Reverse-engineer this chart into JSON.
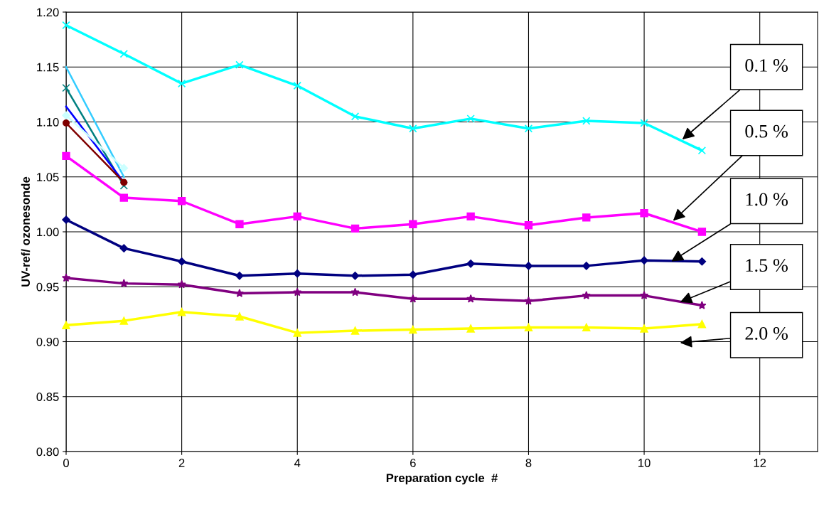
{
  "chart_data": {
    "type": "line",
    "xlabel": "Preparation cycle  #",
    "ylabel": "UV-ref/ ozonesonde",
    "xlim": [
      0,
      13
    ],
    "xticks": [
      0,
      2,
      4,
      6,
      8,
      10,
      12
    ],
    "ylim": [
      0.8,
      1.2
    ],
    "yticks": [
      {
        "value": 0.8,
        "label": "0.80"
      },
      {
        "value": 0.85,
        "label": "0.85"
      },
      {
        "value": 0.9,
        "label": "0.90"
      },
      {
        "value": 0.95,
        "label": "0.95"
      },
      {
        "value": 1.0,
        "label": "1.00"
      },
      {
        "value": 1.05,
        "label": "1.05"
      },
      {
        "value": 1.1,
        "label": "1.10"
      },
      {
        "value": 1.15,
        "label": "1.15"
      },
      {
        "value": 1.2,
        "label": "1.20"
      }
    ],
    "grid": true,
    "legend": false,
    "x": [
      0,
      1,
      2,
      3,
      4,
      5,
      6,
      7,
      8,
      9,
      10,
      11
    ],
    "series": [
      {
        "color": "#00ffff",
        "marker": "cross",
        "values": [
          1.188,
          1.162,
          1.135,
          1.152,
          1.133,
          1.105,
          1.094,
          1.103,
          1.094,
          1.101,
          1.099,
          1.074
        ]
      },
      {
        "color": "#ff00ff",
        "marker": "square",
        "values": [
          1.069,
          1.031,
          1.028,
          1.007,
          1.014,
          1.003,
          1.007,
          1.014,
          1.006,
          1.013,
          1.017,
          1.0
        ]
      },
      {
        "color": "#000080",
        "marker": "diamond",
        "values": [
          1.011,
          0.985,
          0.973,
          0.96,
          0.962,
          0.96,
          0.961,
          0.971,
          0.969,
          0.969,
          0.974,
          0.973
        ]
      },
      {
        "color": "#800080",
        "marker": "star",
        "values": [
          0.958,
          0.953,
          0.952,
          0.944,
          0.945,
          0.945,
          0.939,
          0.939,
          0.937,
          0.942,
          0.942,
          0.933
        ]
      },
      {
        "color": "#ffff00",
        "marker": "triangle",
        "values": [
          0.915,
          0.919,
          0.927,
          0.923,
          0.908,
          0.91,
          0.911,
          0.912,
          0.913,
          0.913,
          0.912,
          0.916
        ]
      },
      {
        "color": "#33ccff",
        "marker": "none",
        "values": [
          1.15,
          1.05,
          null,
          null,
          null,
          null,
          null,
          null,
          null,
          null,
          null,
          null
        ]
      },
      {
        "color": "#008080",
        "marker": "cross",
        "values": [
          1.131,
          1.042,
          null,
          null,
          null,
          null,
          null,
          null,
          null,
          null,
          null,
          null
        ]
      },
      {
        "color": "#0000ff",
        "marker": "none",
        "values": [
          1.114,
          1.045,
          null,
          null,
          null,
          null,
          null,
          null,
          null,
          null,
          null,
          null
        ]
      },
      {
        "color": "#ccffff",
        "marker": "diamond",
        "values": [
          1.106,
          1.058,
          null,
          null,
          null,
          null,
          null,
          null,
          null,
          null,
          null,
          null
        ]
      },
      {
        "color": "#800000",
        "marker": "circle",
        "values": [
          1.099,
          1.045,
          null,
          null,
          null,
          null,
          null,
          null,
          null,
          null,
          null,
          null
        ]
      }
    ],
    "annotations": [
      {
        "text": "0.1 %",
        "x": 10.66,
        "y": 1.084
      },
      {
        "text": "0.5 %",
        "x": 10.5,
        "y": 1.01
      },
      {
        "text": "1.0 %",
        "x": 10.47,
        "y": 0.973
      },
      {
        "text": "1.5 %",
        "x": 10.62,
        "y": 0.936
      },
      "2.0 %"
    ]
  }
}
